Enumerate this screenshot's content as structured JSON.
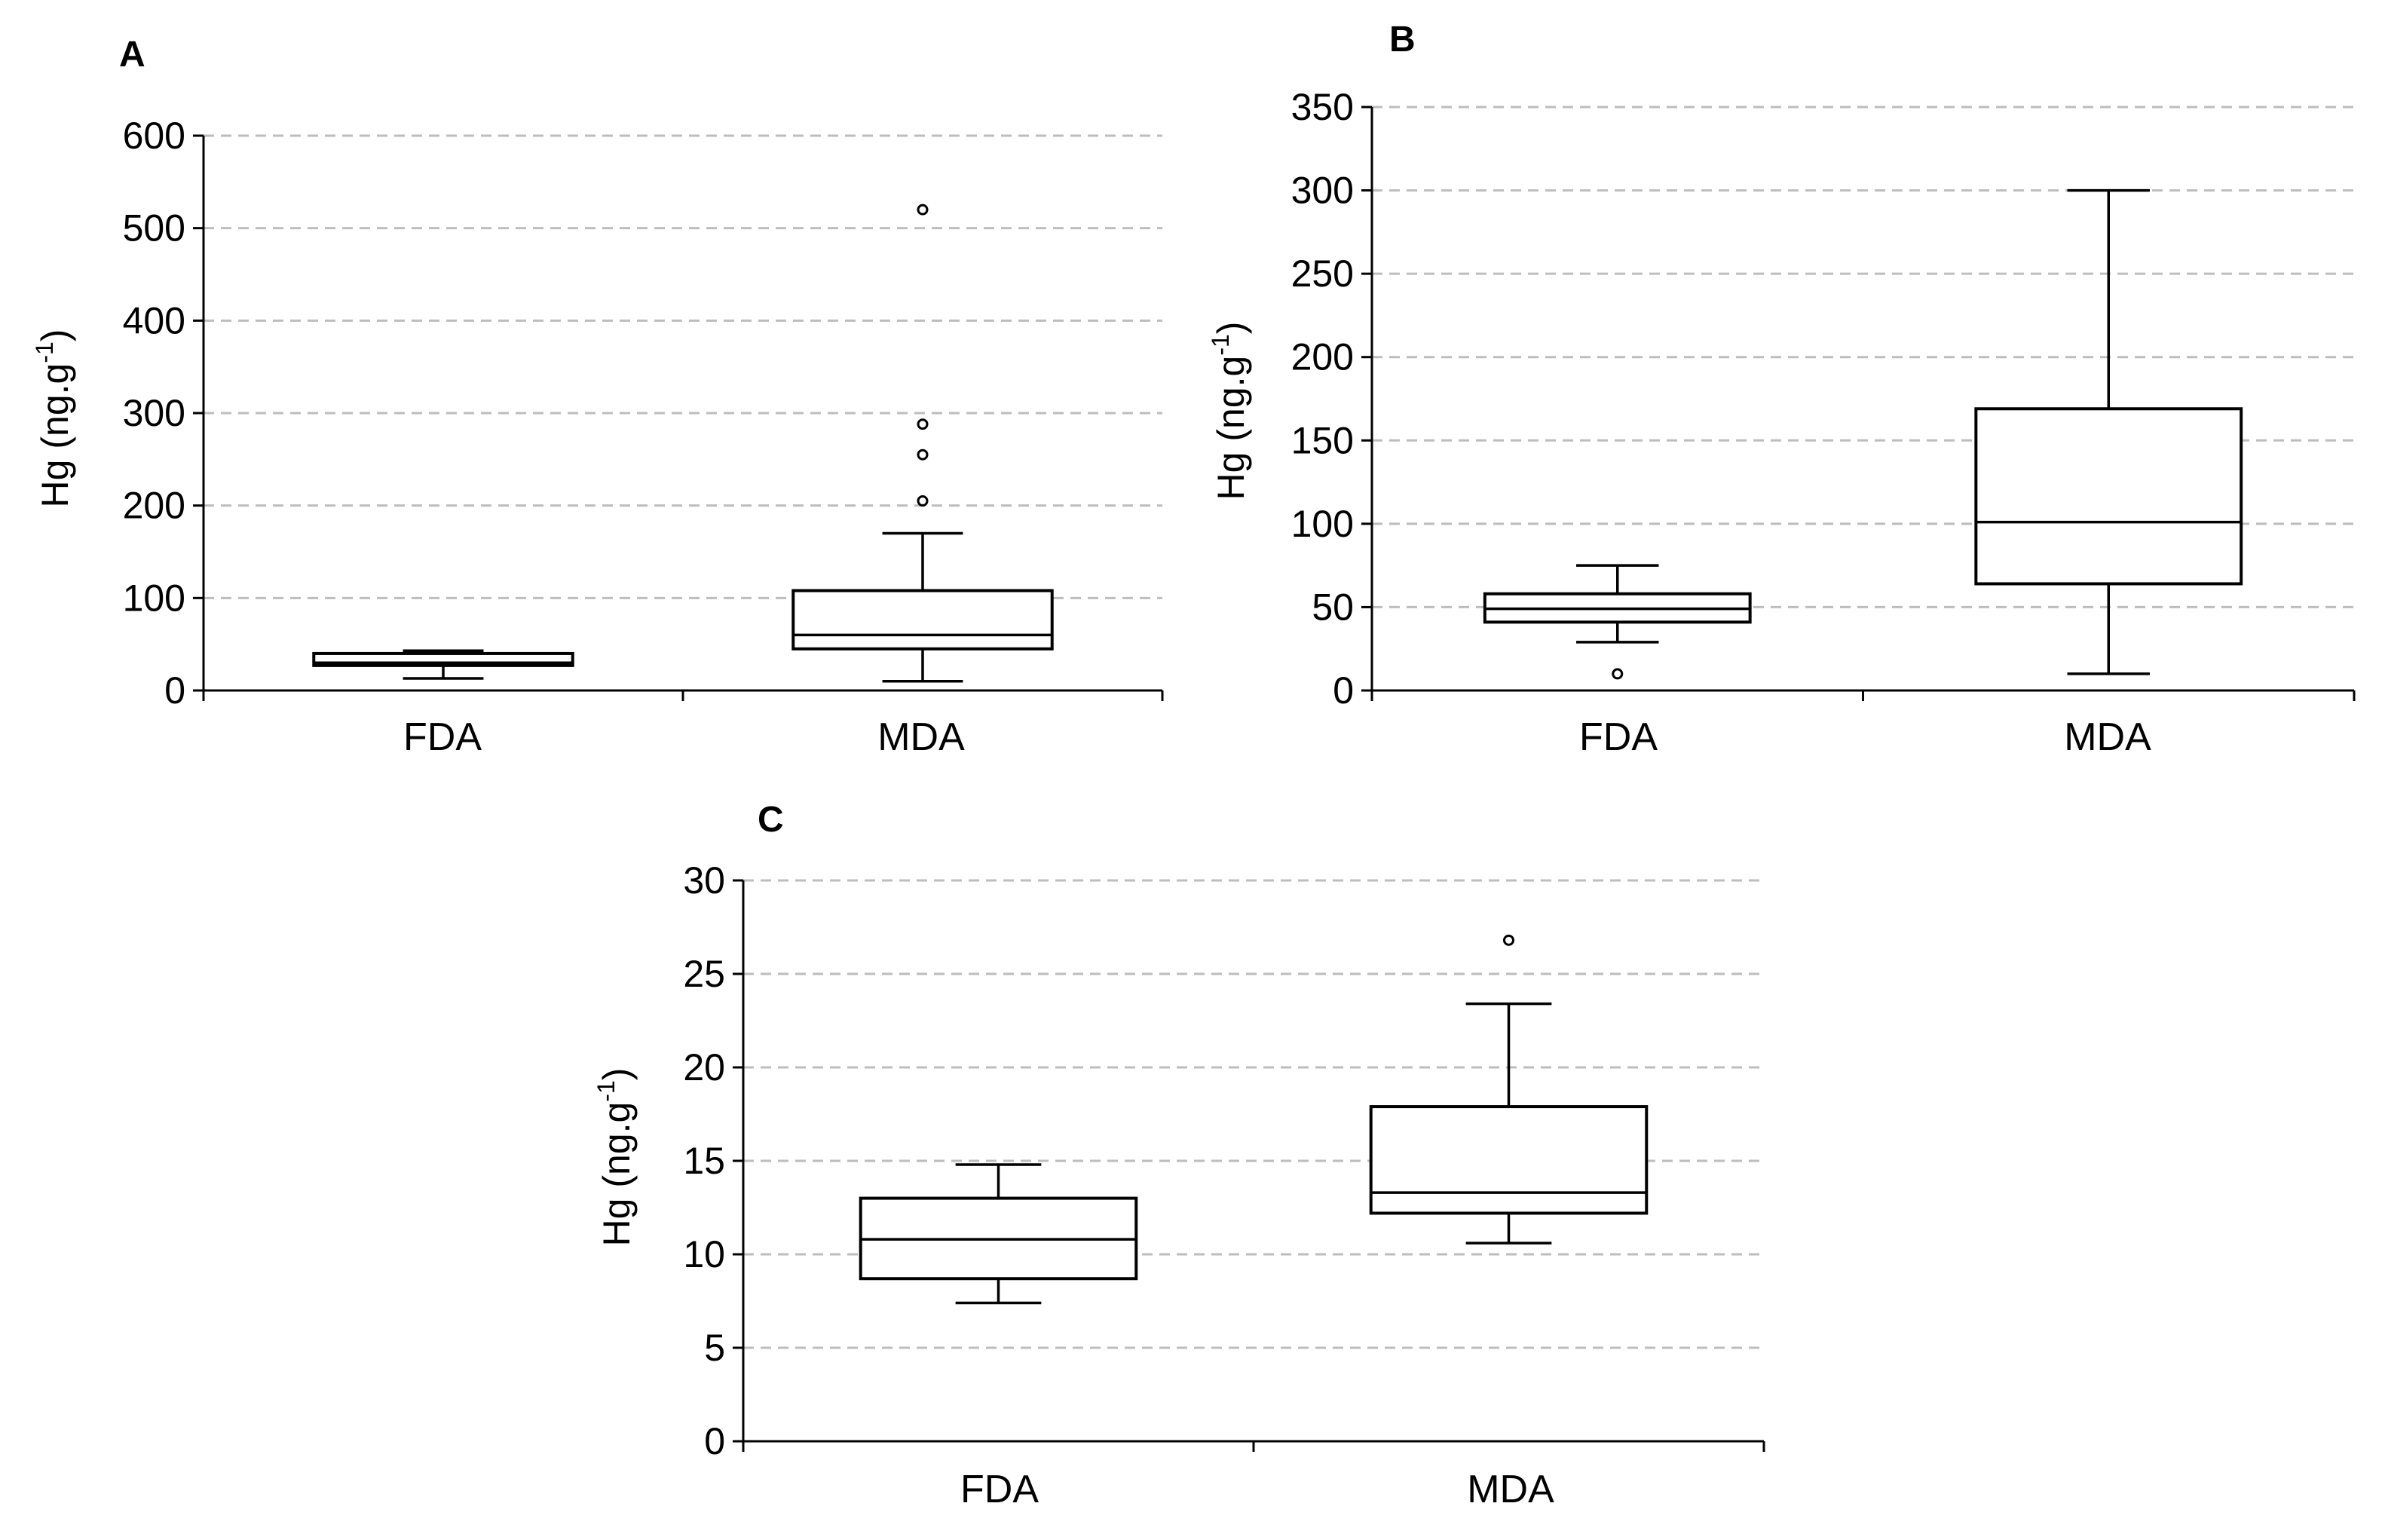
{
  "chart_data": [
    {
      "type": "boxplot",
      "id": "A",
      "title": "A",
      "ylabel_main": "Hg (ng.g",
      "ylabel_sup": "-1",
      "ylabel_close": ")",
      "xlabel": "",
      "ylim": [
        0,
        600
      ],
      "yticks": [
        0,
        100,
        200,
        300,
        400,
        500,
        600
      ],
      "grid": true,
      "categories": [
        "FDA",
        "MDA"
      ],
      "series": [
        {
          "name": "FDA",
          "whisker_low": 13,
          "q1": 27,
          "median": 30,
          "q3": 40,
          "whisker_high": 43,
          "outliers": []
        },
        {
          "name": "MDA",
          "whisker_low": 10,
          "q1": 45,
          "median": 60,
          "q3": 108,
          "whisker_high": 170,
          "outliers": [
            205,
            255,
            288,
            520
          ]
        }
      ]
    },
    {
      "type": "boxplot",
      "id": "B",
      "title": "B",
      "ylabel_main": "Hg (ng.g",
      "ylabel_sup": "-1",
      "ylabel_close": ")",
      "xlabel": "",
      "ylim": [
        0,
        350
      ],
      "yticks": [
        0,
        50,
        100,
        150,
        200,
        250,
        300,
        350
      ],
      "grid": true,
      "categories": [
        "FDA",
        "MDA"
      ],
      "series": [
        {
          "name": "FDA",
          "whisker_low": 29,
          "q1": 41,
          "median": 49,
          "q3": 58,
          "whisker_high": 75,
          "outliers": [
            10
          ]
        },
        {
          "name": "MDA",
          "whisker_low": 10,
          "q1": 64,
          "median": 101,
          "q3": 169,
          "whisker_high": 300,
          "outliers": []
        }
      ]
    },
    {
      "type": "boxplot",
      "id": "C",
      "title": "C",
      "ylabel_main": "Hg (ng.g",
      "ylabel_sup": "-1",
      "ylabel_close": ")",
      "xlabel": "",
      "ylim": [
        0,
        30
      ],
      "yticks": [
        0,
        5,
        10,
        15,
        20,
        25,
        30
      ],
      "grid": true,
      "categories": [
        "FDA",
        "MDA"
      ],
      "series": [
        {
          "name": "FDA",
          "whisker_low": 7.4,
          "q1": 8.7,
          "median": 10.8,
          "q3": 13.0,
          "whisker_high": 14.8,
          "outliers": []
        },
        {
          "name": "MDA",
          "whisker_low": 10.6,
          "q1": 12.2,
          "median": 13.3,
          "q3": 17.9,
          "whisker_high": 23.4,
          "outliers": [
            26.8
          ]
        }
      ]
    }
  ]
}
